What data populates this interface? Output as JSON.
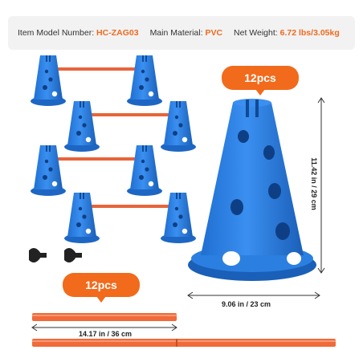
{
  "specs": {
    "model_label": "Item Model Number:",
    "model_value": "HC-ZAG03",
    "material_label": "Main Material:",
    "material_value": "PVC",
    "weight_label": "Net Weight:",
    "weight_value": "6.72 lbs/3.05kg"
  },
  "cone_qty_label": "12pcs",
  "pole_qty_label": "12pcs",
  "cone_height_label": "11.42 in / 29 cm",
  "cone_base_label": "9.06 in / 23 cm",
  "pole_length_label": "14.17 in / 36 cm",
  "colors": {
    "cone_blue": "#2b7fe0",
    "pole_orange": "#f06a3a",
    "accent": "#ef6a1f"
  }
}
